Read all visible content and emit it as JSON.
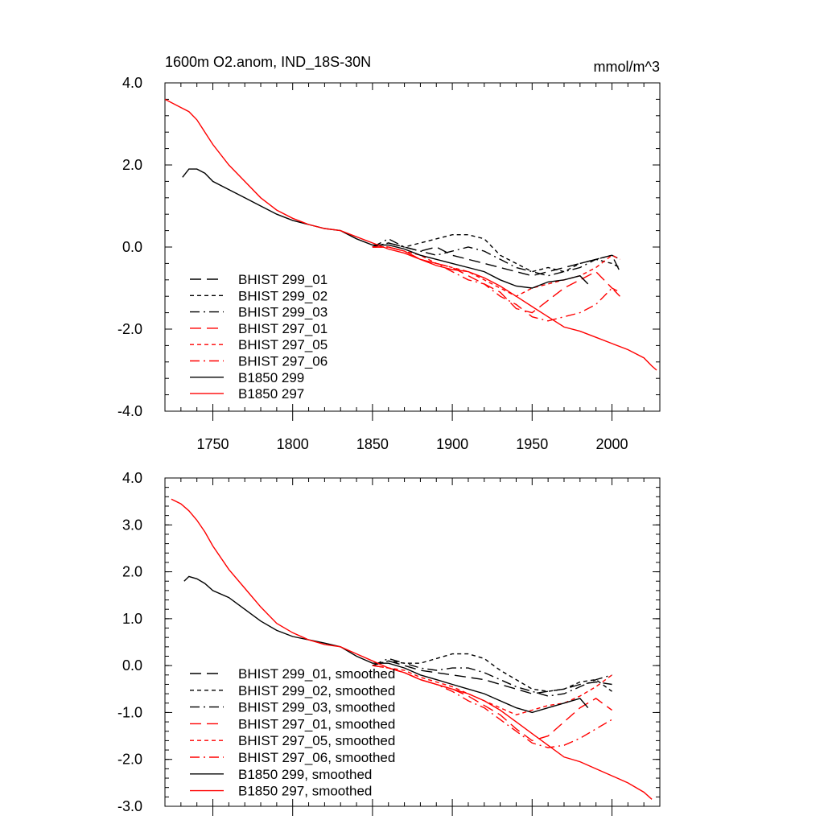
{
  "chart_data": [
    {
      "type": "line",
      "title": "1600m O2.anom, IND_18S-30N",
      "units": "mmol/m^3",
      "xlim": [
        1720,
        2030
      ],
      "ylim": [
        -4.0,
        4.0
      ],
      "xticks": [
        1750,
        1800,
        1850,
        1900,
        1950,
        2000
      ],
      "xtick_labels": [
        "1750",
        "1800",
        "1850",
        "1900",
        "1950",
        "2000"
      ],
      "yticks": [
        -4,
        -2,
        0,
        2,
        4
      ],
      "ytick_labels": [
        "-4.0",
        "-2.0",
        "0.0",
        "2.0",
        "4.0"
      ],
      "grid": false,
      "legend_position": "lower-left",
      "series": [
        {
          "name": "BHIST 299_01",
          "color": "#000000",
          "dash": "long-dash",
          "x": [
            1850,
            1860,
            1870,
            1880,
            1890,
            1900,
            1910,
            1920,
            1930,
            1940,
            1950,
            1960,
            1970,
            1980,
            1990,
            2000,
            2005
          ],
          "y": [
            0.0,
            0.1,
            0.0,
            -0.1,
            0.0,
            -0.2,
            -0.3,
            -0.4,
            -0.5,
            -0.6,
            -0.7,
            -0.6,
            -0.5,
            -0.4,
            -0.3,
            -0.2,
            -0.6
          ]
        },
        {
          "name": "BHIST 299_02",
          "color": "#000000",
          "dash": "short-dash",
          "x": [
            1850,
            1860,
            1870,
            1880,
            1890,
            1900,
            1910,
            1920,
            1930,
            1940,
            1950,
            1960,
            1970,
            1980,
            1990,
            2000,
            2005
          ],
          "y": [
            0.0,
            0.1,
            0.0,
            0.1,
            0.2,
            0.3,
            0.3,
            0.2,
            -0.2,
            -0.4,
            -0.6,
            -0.5,
            -0.6,
            -0.4,
            -0.3,
            -0.4,
            -0.5
          ]
        },
        {
          "name": "BHIST 299_03",
          "color": "#000000",
          "dash": "dash-dot",
          "x": [
            1850,
            1860,
            1870,
            1880,
            1890,
            1900,
            1910,
            1920,
            1930,
            1940,
            1950,
            1960,
            1970,
            1980,
            1990,
            2000,
            2005
          ],
          "y": [
            0.0,
            0.2,
            0.0,
            -0.1,
            -0.2,
            -0.1,
            0.0,
            -0.1,
            -0.3,
            -0.5,
            -0.6,
            -0.7,
            -0.6,
            -0.5,
            -0.3,
            -0.2,
            -0.3
          ]
        },
        {
          "name": "BHIST 297_01",
          "color": "#ff0000",
          "dash": "long-dash",
          "x": [
            1850,
            1860,
            1870,
            1880,
            1890,
            1900,
            1910,
            1920,
            1930,
            1940,
            1950,
            1960,
            1970,
            1980,
            1990,
            2000,
            2005
          ],
          "y": [
            0.0,
            0.0,
            -0.1,
            -0.3,
            -0.4,
            -0.5,
            -0.7,
            -0.9,
            -1.1,
            -1.5,
            -1.6,
            -1.3,
            -1.0,
            -0.8,
            -0.6,
            -1.0,
            -1.1
          ]
        },
        {
          "name": "BHIST 297_05",
          "color": "#ff0000",
          "dash": "short-dash",
          "x": [
            1850,
            1860,
            1870,
            1880,
            1890,
            1900,
            1910,
            1920,
            1930,
            1940,
            1950,
            1960,
            1970,
            1980,
            1990,
            2000,
            2005
          ],
          "y": [
            0.0,
            0.0,
            -0.1,
            -0.2,
            -0.4,
            -0.5,
            -0.6,
            -0.8,
            -1.0,
            -1.2,
            -1.0,
            -0.9,
            -0.8,
            -0.7,
            -0.5,
            -0.2,
            -0.3
          ]
        },
        {
          "name": "BHIST 297_06",
          "color": "#ff0000",
          "dash": "dash-dot",
          "x": [
            1850,
            1860,
            1870,
            1880,
            1890,
            1900,
            1910,
            1920,
            1930,
            1940,
            1950,
            1960,
            1970,
            1980,
            1990,
            2000,
            2005
          ],
          "y": [
            0.0,
            0.0,
            -0.1,
            -0.3,
            -0.4,
            -0.6,
            -0.8,
            -0.9,
            -1.2,
            -1.4,
            -1.7,
            -1.8,
            -1.7,
            -1.6,
            -1.4,
            -1.0,
            -1.2
          ]
        },
        {
          "name": "B1850 299",
          "color": "#000000",
          "dash": "solid",
          "x": [
            1731,
            1735,
            1740,
            1745,
            1750,
            1760,
            1770,
            1780,
            1790,
            1800,
            1810,
            1820,
            1830,
            1840,
            1850,
            1860,
            1870,
            1880,
            1890,
            1900,
            1910,
            1920,
            1930,
            1940,
            1950,
            1960,
            1970,
            1980,
            1985
          ],
          "y": [
            1.7,
            1.9,
            1.9,
            1.8,
            1.6,
            1.4,
            1.2,
            1.0,
            0.8,
            0.65,
            0.55,
            0.45,
            0.4,
            0.2,
            0.05,
            0.05,
            -0.05,
            -0.2,
            -0.3,
            -0.4,
            -0.5,
            -0.6,
            -0.8,
            -0.95,
            -1.0,
            -0.85,
            -0.8,
            -0.7,
            -0.9
          ]
        },
        {
          "name": "B1850 297",
          "color": "#ff0000",
          "dash": "solid",
          "x": [
            1720,
            1725,
            1730,
            1735,
            1740,
            1745,
            1750,
            1760,
            1770,
            1780,
            1790,
            1800,
            1810,
            1820,
            1830,
            1840,
            1850,
            1860,
            1870,
            1880,
            1890,
            1900,
            1910,
            1920,
            1930,
            1940,
            1950,
            1960,
            1970,
            1980,
            1990,
            2000,
            2010,
            2020,
            2025,
            2028
          ],
          "y": [
            3.6,
            3.5,
            3.4,
            3.3,
            3.1,
            2.8,
            2.5,
            2.0,
            1.6,
            1.2,
            0.9,
            0.7,
            0.55,
            0.45,
            0.4,
            0.25,
            0.1,
            -0.05,
            -0.15,
            -0.3,
            -0.45,
            -0.55,
            -0.6,
            -0.75,
            -0.95,
            -1.2,
            -1.45,
            -1.7,
            -1.95,
            -2.05,
            -2.2,
            -2.35,
            -2.5,
            -2.7,
            -2.9,
            -3.0
          ]
        }
      ]
    },
    {
      "type": "line",
      "title": "",
      "xlim": [
        1720,
        2030
      ],
      "ylim": [
        -3.0,
        4.0
      ],
      "xticks": [
        1750,
        1800,
        1850,
        1900,
        1950,
        2000
      ],
      "xtick_labels": [],
      "yticks": [
        -3,
        -2,
        -1,
        0,
        1,
        2,
        3,
        4
      ],
      "ytick_labels": [
        "-3.0",
        "-2.0",
        "-1.0",
        "0.0",
        "1.0",
        "2.0",
        "3.0",
        "4.0"
      ],
      "grid": false,
      "legend_position": "lower-left",
      "series": [
        {
          "name": "BHIST 299_01, smoothed",
          "color": "#000000",
          "dash": "long-dash",
          "x": [
            1850,
            1860,
            1870,
            1880,
            1890,
            1900,
            1910,
            1920,
            1930,
            1940,
            1950,
            1960,
            1970,
            1980,
            1990,
            2000
          ],
          "y": [
            0.0,
            0.1,
            0.0,
            -0.1,
            -0.15,
            -0.2,
            -0.25,
            -0.3,
            -0.4,
            -0.5,
            -0.6,
            -0.55,
            -0.5,
            -0.4,
            -0.35,
            -0.4
          ]
        },
        {
          "name": "BHIST 299_02, smoothed",
          "color": "#000000",
          "dash": "short-dash",
          "x": [
            1850,
            1860,
            1870,
            1880,
            1890,
            1900,
            1910,
            1920,
            1930,
            1940,
            1950,
            1960,
            1970,
            1980,
            1990,
            2000
          ],
          "y": [
            0.0,
            0.1,
            0.05,
            0.05,
            0.15,
            0.25,
            0.25,
            0.15,
            -0.1,
            -0.3,
            -0.5,
            -0.55,
            -0.5,
            -0.35,
            -0.3,
            -0.55
          ]
        },
        {
          "name": "BHIST 299_03, smoothed",
          "color": "#000000",
          "dash": "dash-dot",
          "x": [
            1850,
            1860,
            1870,
            1880,
            1890,
            1900,
            1910,
            1920,
            1930,
            1940,
            1950,
            1960,
            1970,
            1980,
            1990,
            2000
          ],
          "y": [
            0.0,
            0.15,
            0.05,
            -0.05,
            -0.1,
            -0.05,
            -0.05,
            -0.15,
            -0.3,
            -0.45,
            -0.55,
            -0.65,
            -0.6,
            -0.45,
            -0.3,
            -0.2
          ]
        },
        {
          "name": "BHIST 297_01, smoothed",
          "color": "#ff0000",
          "dash": "long-dash",
          "x": [
            1850,
            1860,
            1870,
            1880,
            1890,
            1900,
            1910,
            1920,
            1930,
            1940,
            1950,
            1960,
            1970,
            1980,
            1990,
            2000
          ],
          "y": [
            0.0,
            -0.05,
            -0.15,
            -0.3,
            -0.4,
            -0.5,
            -0.65,
            -0.85,
            -1.05,
            -1.35,
            -1.6,
            -1.5,
            -1.2,
            -0.9,
            -0.7,
            -0.95
          ]
        },
        {
          "name": "BHIST 297_05, smoothed",
          "color": "#ff0000",
          "dash": "short-dash",
          "x": [
            1850,
            1860,
            1870,
            1880,
            1890,
            1900,
            1910,
            1920,
            1930,
            1940,
            1950,
            1960,
            1970,
            1980,
            1990,
            2000
          ],
          "y": [
            0.0,
            -0.05,
            -0.1,
            -0.25,
            -0.35,
            -0.45,
            -0.6,
            -0.75,
            -0.9,
            -1.05,
            -0.95,
            -0.85,
            -0.8,
            -0.65,
            -0.45,
            -0.2
          ]
        },
        {
          "name": "BHIST 297_06, smoothed",
          "color": "#ff0000",
          "dash": "dash-dot",
          "x": [
            1850,
            1860,
            1870,
            1880,
            1890,
            1900,
            1910,
            1920,
            1930,
            1940,
            1950,
            1960,
            1970,
            1980,
            1990,
            2000
          ],
          "y": [
            0.0,
            -0.05,
            -0.15,
            -0.3,
            -0.4,
            -0.55,
            -0.75,
            -0.9,
            -1.15,
            -1.4,
            -1.65,
            -1.75,
            -1.7,
            -1.55,
            -1.35,
            -1.15
          ]
        },
        {
          "name": "B1850 299, smoothed",
          "color": "#000000",
          "dash": "solid",
          "x": [
            1732,
            1735,
            1740,
            1745,
            1750,
            1760,
            1770,
            1780,
            1790,
            1800,
            1810,
            1820,
            1830,
            1840,
            1850,
            1860,
            1870,
            1880,
            1890,
            1900,
            1910,
            1920,
            1930,
            1940,
            1950,
            1960,
            1970,
            1980,
            1985
          ],
          "y": [
            1.8,
            1.9,
            1.85,
            1.75,
            1.6,
            1.45,
            1.2,
            0.95,
            0.75,
            0.62,
            0.55,
            0.48,
            0.4,
            0.2,
            0.05,
            0.05,
            -0.05,
            -0.2,
            -0.3,
            -0.4,
            -0.5,
            -0.6,
            -0.75,
            -0.9,
            -1.0,
            -0.9,
            -0.8,
            -0.7,
            -0.9
          ]
        },
        {
          "name": "B1850 297, smoothed",
          "color": "#ff0000",
          "dash": "solid",
          "x": [
            1724,
            1730,
            1735,
            1740,
            1745,
            1750,
            1760,
            1770,
            1780,
            1790,
            1800,
            1810,
            1820,
            1830,
            1840,
            1850,
            1860,
            1870,
            1880,
            1890,
            1900,
            1910,
            1920,
            1930,
            1940,
            1950,
            1960,
            1970,
            1980,
            1990,
            2000,
            2010,
            2020,
            2025
          ],
          "y": [
            3.55,
            3.45,
            3.3,
            3.1,
            2.85,
            2.55,
            2.05,
            1.65,
            1.25,
            0.9,
            0.7,
            0.55,
            0.45,
            0.4,
            0.25,
            0.1,
            -0.05,
            -0.15,
            -0.3,
            -0.4,
            -0.5,
            -0.6,
            -0.75,
            -0.95,
            -1.2,
            -1.45,
            -1.7,
            -1.95,
            -2.05,
            -2.2,
            -2.35,
            -2.5,
            -2.7,
            -2.85
          ]
        }
      ]
    }
  ]
}
